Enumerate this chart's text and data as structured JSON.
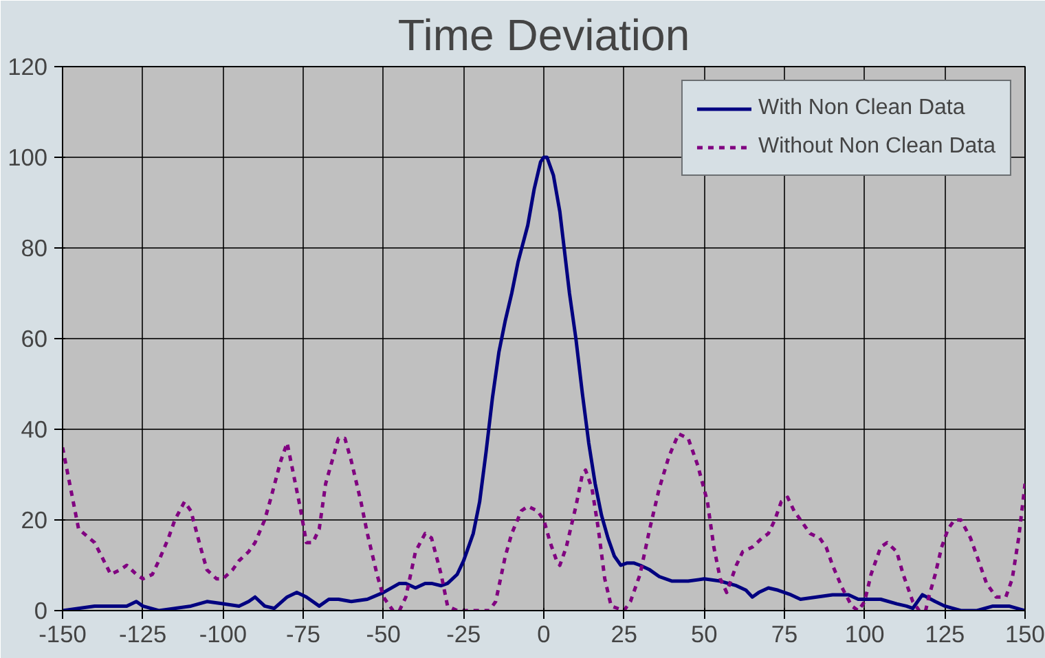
{
  "chart_data": {
    "type": "line",
    "title": "Time Deviation",
    "xlim": [
      -150,
      150
    ],
    "xticks": [
      -150,
      -125,
      -100,
      -75,
      -50,
      -25,
      0,
      25,
      50,
      75,
      100,
      125,
      150
    ],
    "ylim": [
      0,
      120
    ],
    "yticks": [
      0,
      20,
      40,
      60,
      80,
      100,
      120
    ],
    "grid": true,
    "legend": "top right",
    "series": [
      {
        "name": "With Non Clean Data",
        "color": "#000080",
        "line_style": "solid",
        "x": [
          -150,
          -140,
          -130,
          -127,
          -125,
          -120,
          -110,
          -105,
          -100,
          -95,
          -92,
          -90,
          -87,
          -84,
          -80,
          -77,
          -74,
          -70,
          -67,
          -64,
          -60,
          -55,
          -50,
          -45,
          -43,
          -40,
          -37,
          -35,
          -32,
          -30,
          -27,
          -25,
          -22,
          -20,
          -18,
          -16,
          -14,
          -12,
          -10,
          -8,
          -5,
          -3,
          -1,
          0,
          1,
          3,
          5,
          6,
          8,
          10,
          12,
          14,
          16,
          18,
          20,
          22,
          24,
          26,
          28,
          30,
          33,
          36,
          40,
          45,
          50,
          55,
          60,
          63,
          65,
          67,
          70,
          73,
          77,
          80,
          85,
          90,
          95,
          98,
          100,
          105,
          110,
          113,
          115,
          118,
          122,
          125,
          130,
          135,
          140,
          145,
          150
        ],
        "values": [
          0,
          1,
          1,
          2,
          1,
          0,
          1,
          2,
          1.5,
          1,
          2,
          3,
          1,
          0.5,
          3,
          4,
          3,
          1,
          2.5,
          2.5,
          2,
          2.5,
          4,
          6,
          6,
          5,
          6,
          6,
          5.5,
          6,
          8,
          11,
          17,
          24,
          35,
          47,
          57,
          64,
          70,
          77,
          85,
          93,
          99,
          100,
          100,
          96,
          88,
          82,
          70,
          60,
          48,
          37,
          28,
          21,
          16,
          12,
          10,
          10.5,
          10.5,
          10,
          9,
          7.5,
          6.5,
          6.5,
          7,
          6.5,
          5.5,
          4.5,
          3,
          4,
          5,
          4.5,
          3.5,
          2.5,
          3,
          3.5,
          3.5,
          2.5,
          2.5,
          2.5,
          1.5,
          1,
          0.5,
          3.5,
          2,
          1,
          0,
          0,
          1,
          1,
          0
        ]
      },
      {
        "name": "Without Non Clean Data",
        "color": "#800080",
        "line_style": "dashed",
        "x": [
          -150,
          -145,
          -140,
          -135,
          -132,
          -130,
          -127,
          -125,
          -122,
          -120,
          -117,
          -115,
          -112,
          -110,
          -107,
          -105,
          -102,
          -100,
          -97,
          -95,
          -92,
          -90,
          -87,
          -85,
          -82,
          -80,
          -78,
          -76,
          -74,
          -72,
          -70,
          -68,
          -66,
          -64,
          -62,
          -60,
          -57,
          -55,
          -52,
          -50,
          -47,
          -45,
          -43,
          -40,
          -37,
          -35,
          -32,
          -30,
          -27,
          -22,
          -17,
          -15,
          -12,
          -10,
          -7,
          -5,
          -2,
          0,
          2,
          4,
          5,
          7,
          10,
          12,
          13,
          15,
          17,
          19,
          21,
          25,
          27,
          30,
          33,
          36,
          39,
          42,
          45,
          48,
          51,
          53,
          55,
          57,
          60,
          62,
          65,
          68,
          70,
          72,
          74,
          76,
          78,
          80,
          83,
          86,
          88,
          90,
          93,
          96,
          98,
          100,
          102,
          105,
          107,
          110,
          112,
          115,
          117,
          119,
          120,
          122,
          124,
          126,
          128,
          130,
          133,
          136,
          138,
          141,
          144,
          146,
          148,
          150
        ],
        "values": [
          36,
          18,
          15,
          8,
          9,
          10,
          8,
          7,
          8,
          11,
          16,
          20,
          24,
          22,
          14,
          9,
          7,
          7,
          9,
          11,
          13,
          15,
          20,
          25,
          33,
          37,
          30,
          23,
          15,
          15,
          18,
          28,
          33,
          38,
          38,
          33,
          24,
          17,
          8,
          3,
          0,
          0,
          3,
          13,
          17,
          16,
          8,
          1,
          0,
          0,
          0,
          2,
          12,
          17,
          22,
          23,
          22,
          20,
          15,
          11,
          10,
          14,
          23,
          30,
          31,
          27,
          18,
          7,
          1,
          0,
          2,
          8,
          18,
          27,
          34,
          39,
          38,
          32,
          24,
          14,
          7,
          4,
          10,
          13,
          14,
          16,
          17,
          20,
          24,
          25,
          22,
          20,
          17,
          16,
          14,
          10,
          5,
          1,
          0,
          2,
          8,
          14,
          15,
          13,
          8,
          2,
          0,
          0,
          3,
          8,
          14,
          18,
          20,
          20,
          16,
          10,
          6,
          3,
          3,
          7,
          16,
          28
        ]
      }
    ]
  }
}
